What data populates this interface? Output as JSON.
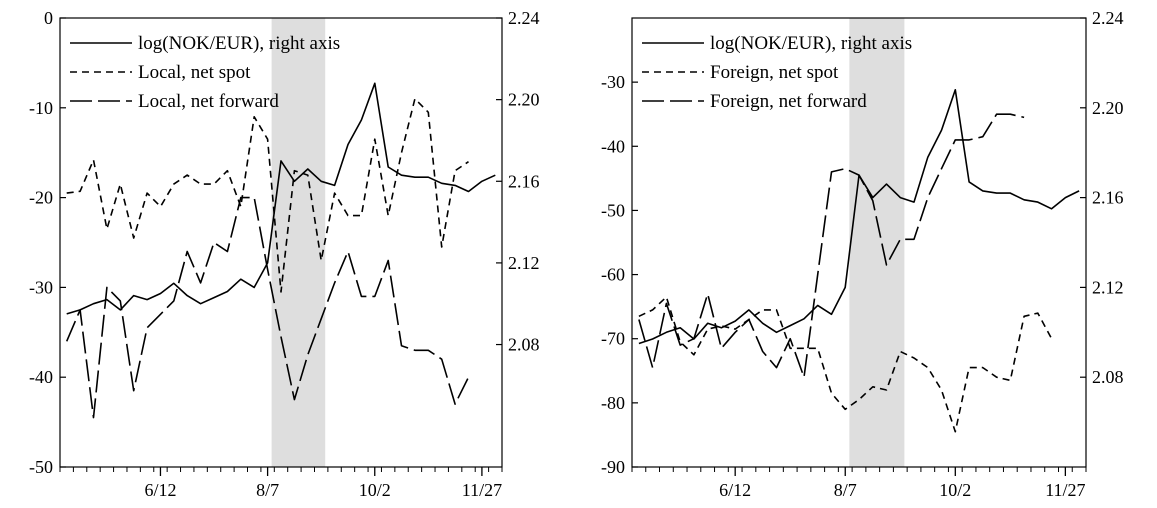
{
  "chart_data": [
    {
      "type": "line",
      "title": "",
      "x_tick_labels": [
        "6/12",
        "8/7",
        "10/2",
        "11/27"
      ],
      "x_tick_label_positions": [
        7,
        15,
        23,
        31
      ],
      "n_points": 33,
      "shaded_region": {
        "from": 15.3,
        "to": 19.3
      },
      "left_axis": {
        "ylim": [
          -50,
          0
        ],
        "ticks": [
          "0",
          "-10",
          "-20",
          "-30",
          "-40",
          "-50"
        ]
      },
      "right_axis": {
        "ylim": [
          2.02,
          2.24
        ],
        "ticks": [
          "2.24",
          "2.20",
          "2.16",
          "2.12",
          "2.08"
        ]
      },
      "legend": {
        "placement": "top-left"
      },
      "series": [
        {
          "name": "log(NOK/EUR), right axis",
          "axis": "right",
          "style": "solid",
          "values": [
            2.095,
            2.097,
            2.1,
            2.102,
            2.097,
            2.104,
            2.102,
            2.105,
            2.11,
            2.104,
            2.1,
            2.103,
            2.106,
            2.112,
            2.108,
            2.12,
            2.17,
            2.16,
            2.166,
            2.16,
            2.158,
            2.178,
            2.19,
            2.208,
            2.167,
            2.163,
            2.162,
            2.162,
            2.159,
            2.158,
            2.155,
            2.16,
            2.163
          ]
        },
        {
          "name": "Local, net spot",
          "axis": "left",
          "style": "dashed",
          "values": [
            -19.5,
            -19.3,
            -15.8,
            -23.5,
            -18.5,
            -24.5,
            -19.5,
            -21,
            -18.5,
            -17.5,
            -18.5,
            -18.5,
            -17,
            -21,
            -11,
            -13.5,
            -30.5,
            -17,
            -17.5,
            -27,
            -19.5,
            -22,
            -22,
            -13.5,
            -22,
            -15,
            -9,
            -10.5,
            -25.5,
            -17,
            -16
          ]
        },
        {
          "name": "Local, net forward",
          "axis": "left",
          "style": "long-dash",
          "values": [
            -36,
            -32.5,
            -44.5,
            -30,
            -31.5,
            -41.5,
            -34.5,
            -33,
            -31.5,
            -26,
            -29.5,
            -25,
            -26,
            -20,
            -20,
            -28,
            -35.5,
            -42.5,
            -37.5,
            -33.5,
            -29.5,
            -26,
            -31,
            -31,
            -27,
            -36.5,
            -37,
            -37,
            -38,
            -43,
            -40
          ]
        }
      ]
    },
    {
      "type": "line",
      "title": "",
      "x_tick_labels": [
        "6/12",
        "8/7",
        "10/2",
        "11/27"
      ],
      "x_tick_label_positions": [
        7,
        15,
        23,
        31
      ],
      "n_points": 33,
      "shaded_region": {
        "from": 15.3,
        "to": 19.3
      },
      "left_axis": {
        "ylim": [
          -90,
          -20
        ],
        "ticks": [
          "-30",
          "-40",
          "-50",
          "-60",
          "-70",
          "-80",
          "-90"
        ]
      },
      "right_axis": {
        "ylim": [
          2.04,
          2.24
        ],
        "ticks": [
          "2.24",
          "2.20",
          "2.16",
          "2.12",
          "2.08"
        ]
      },
      "legend": {
        "placement": "top-left"
      },
      "series": [
        {
          "name": "log(NOK/EUR), right axis",
          "axis": "right",
          "style": "solid",
          "values": [
            2.095,
            2.097,
            2.1,
            2.102,
            2.097,
            2.104,
            2.102,
            2.105,
            2.11,
            2.104,
            2.1,
            2.103,
            2.106,
            2.112,
            2.108,
            2.12,
            2.17,
            2.16,
            2.166,
            2.16,
            2.158,
            2.178,
            2.19,
            2.208,
            2.167,
            2.163,
            2.162,
            2.162,
            2.159,
            2.158,
            2.155,
            2.16,
            2.163
          ]
        },
        {
          "name": "Foreign, net spot",
          "axis": "left",
          "style": "dashed",
          "values": [
            -66.5,
            -65.5,
            -63.5,
            -70.5,
            -72.5,
            -68.5,
            -68,
            -68.5,
            -67,
            -65.5,
            -65.5,
            -71.5,
            -71.5,
            -71.5,
            -78.5,
            -81,
            -79.5,
            -77.5,
            -78,
            -72,
            -73,
            -74.5,
            -78,
            -84.5,
            -74.5,
            -74.5,
            -76,
            -76.5,
            -66.5,
            -66,
            -70
          ]
        },
        {
          "name": "Foreign, net forward",
          "axis": "left",
          "style": "long-dash",
          "values": [
            -67,
            -74.5,
            -64.5,
            -71,
            -70,
            -63,
            -71.5,
            -69,
            -67,
            -72,
            -74.5,
            -70,
            -76,
            -60,
            -44,
            -43.5,
            -44.5,
            -48.5,
            -58.5,
            -54.5,
            -54.5,
            -48,
            -43.5,
            -39,
            -39,
            -38.5,
            -35,
            -35,
            -35.5
          ]
        }
      ]
    }
  ]
}
